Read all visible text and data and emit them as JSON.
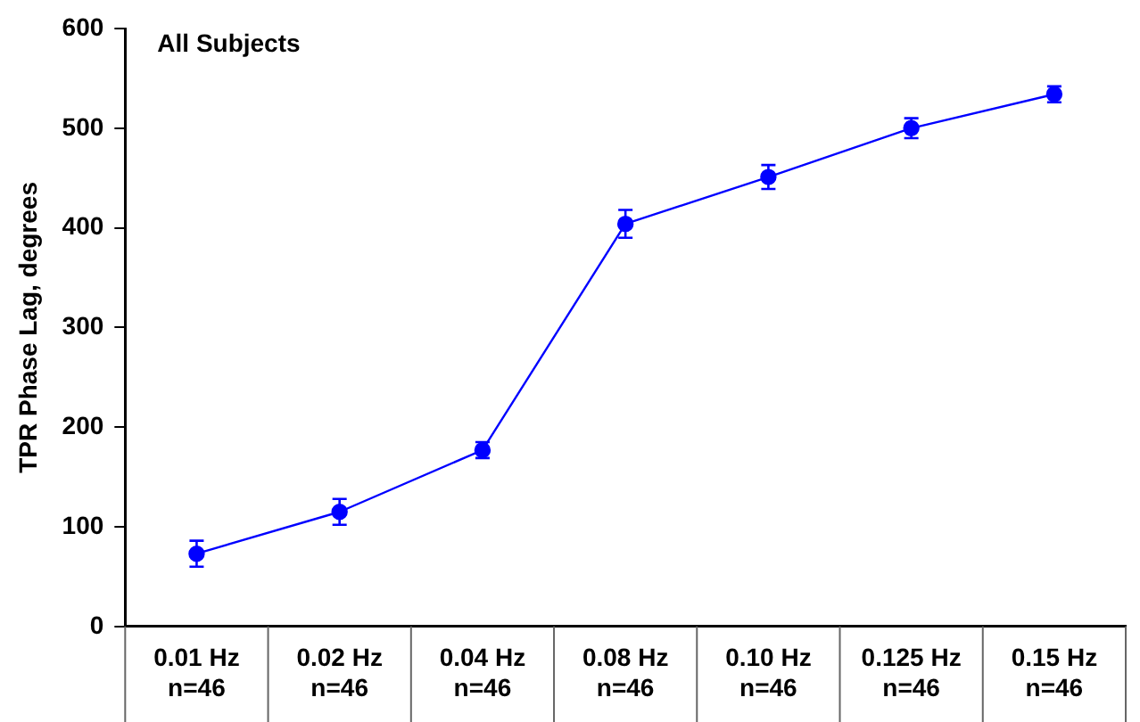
{
  "chart_data": {
    "type": "line",
    "title": "All Subjects",
    "ylabel": "TPR Phase Lag, degrees",
    "categories": [
      "0.01 Hz\nn=46",
      "0.02 Hz\nn=46",
      "0.04 Hz\nn=46",
      "0.08 Hz\nn=46",
      "0.10 Hz\nn=46",
      "0.125 Hz\nn=46",
      "0.15 Hz\nn=46"
    ],
    "series": [
      {
        "color": "#0000ff",
        "values": [
          73,
          115,
          177,
          404,
          451,
          500,
          534
        ],
        "errors": [
          13,
          13,
          8,
          14,
          12,
          10,
          8
        ]
      }
    ],
    "ylim": [
      0,
      600
    ],
    "yticks": [
      0,
      100,
      200,
      300,
      400,
      500,
      600
    ],
    "grid": false,
    "legend": false,
    "marker": "circle",
    "line_style": "solid"
  }
}
